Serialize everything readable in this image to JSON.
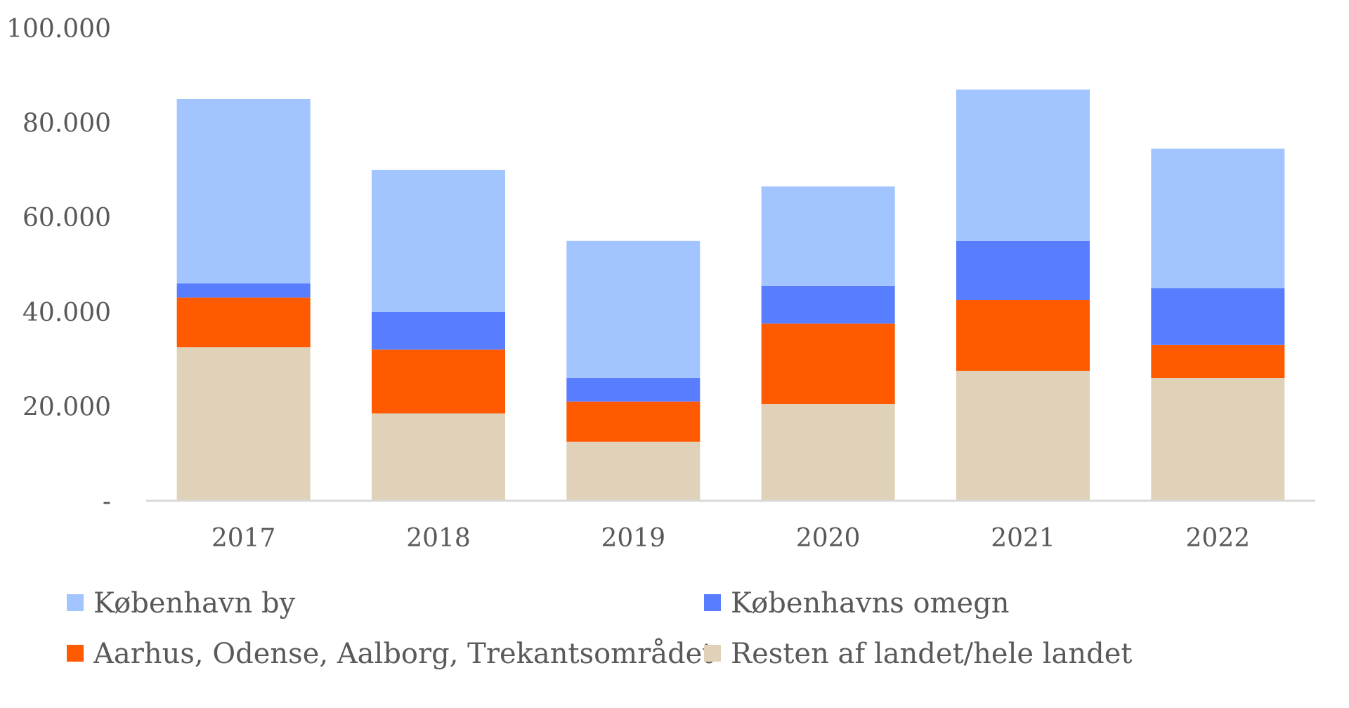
{
  "chart_data": {
    "type": "bar",
    "stacked": true,
    "categories": [
      "2017",
      "2018",
      "2019",
      "2020",
      "2021",
      "2022"
    ],
    "series": [
      {
        "name": "Resten af landet/hele landet",
        "color": "#E0D2B8",
        "values": [
          32500,
          18500,
          12500,
          20500,
          27500,
          26000
        ]
      },
      {
        "name": "Aarhus, Odense, Aalborg, Trekantsområdet",
        "color": "#FF5A00",
        "values": [
          10500,
          13500,
          8500,
          17000,
          15000,
          7000
        ]
      },
      {
        "name": "Københavns omegn",
        "color": "#587DFF",
        "values": [
          3000,
          8000,
          5000,
          8000,
          12500,
          12000
        ]
      },
      {
        "name": "København by",
        "color": "#A2C4FF",
        "values": [
          39000,
          30000,
          29000,
          21000,
          32000,
          29500
        ]
      }
    ],
    "legend_order": [
      3,
      2,
      1,
      0
    ],
    "y_ticks": [
      {
        "value": 0,
        "label": "-"
      },
      {
        "value": 20000,
        "label": "20.000"
      },
      {
        "value": 40000,
        "label": "40.000"
      },
      {
        "value": 60000,
        "label": "60.000"
      },
      {
        "value": 80000,
        "label": "80.000"
      },
      {
        "value": 100000,
        "label": "100.000"
      }
    ],
    "ylim": [
      0,
      100000
    ],
    "title": "",
    "xlabel": "",
    "ylabel": "",
    "grid": false,
    "legend_position": "bottom",
    "axis_color": "#D9D9D9",
    "text_color": "#595959"
  }
}
